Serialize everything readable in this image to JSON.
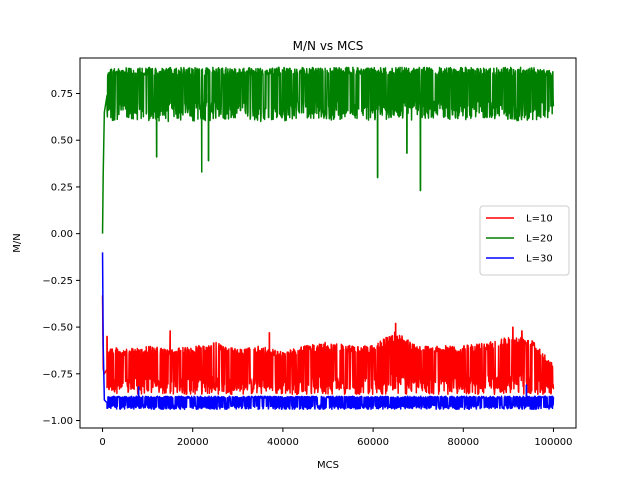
{
  "chart_data": {
    "type": "line",
    "title": "M/N vs MCS",
    "xlabel": "MCS",
    "ylabel": "M/N",
    "xlim": [
      -5000,
      105000
    ],
    "ylim": [
      -1.04,
      0.94
    ],
    "x_ticks": [
      0,
      20000,
      40000,
      60000,
      80000,
      100000
    ],
    "x_tick_labels": [
      "0",
      "20000",
      "40000",
      "60000",
      "80000",
      "100000"
    ],
    "y_ticks": [
      -1.0,
      -0.75,
      -0.5,
      -0.25,
      0.0,
      0.25,
      0.5,
      0.75
    ],
    "y_tick_labels": [
      "−1.00",
      "−0.75",
      "−0.50",
      "−0.25",
      "0.00",
      "0.25",
      "0.50",
      "0.75"
    ],
    "grid": false,
    "legend_position": "center-right",
    "series": [
      {
        "name": "L=10",
        "color": "#ff0000",
        "x": [
          0,
          150,
          400,
          1000,
          5000,
          10000,
          15000,
          20000,
          25000,
          30000,
          35000,
          40000,
          45000,
          50000,
          55000,
          60000,
          65000,
          70000,
          75000,
          80000,
          85000,
          90000,
          95000,
          100000
        ],
        "y_band_low": [
          -0.33,
          -0.85,
          -0.85,
          -0.85,
          -0.86,
          -0.86,
          -0.86,
          -0.86,
          -0.86,
          -0.86,
          -0.86,
          -0.86,
          -0.86,
          -0.86,
          -0.86,
          -0.86,
          -0.86,
          -0.86,
          -0.86,
          -0.86,
          -0.86,
          -0.86,
          -0.86,
          -0.86
        ],
        "y_band_high": [
          -0.33,
          -0.6,
          -0.65,
          -0.6,
          -0.62,
          -0.6,
          -0.62,
          -0.6,
          -0.58,
          -0.62,
          -0.6,
          -0.63,
          -0.6,
          -0.58,
          -0.6,
          -0.6,
          -0.52,
          -0.6,
          -0.6,
          -0.6,
          -0.58,
          -0.55,
          -0.55,
          -0.7
        ],
        "spikes": [
          [
            1000,
            -0.55
          ],
          [
            15000,
            -0.52
          ],
          [
            37000,
            -0.53
          ],
          [
            65000,
            -0.48
          ],
          [
            91000,
            -0.5
          ],
          [
            93000,
            -0.52
          ]
        ]
      },
      {
        "name": "L=20",
        "color": "#008000",
        "x": [
          0,
          150,
          400,
          1000,
          5000,
          10000,
          15000,
          20000,
          25000,
          30000,
          35000,
          40000,
          45000,
          50000,
          55000,
          60000,
          65000,
          70000,
          75000,
          80000,
          85000,
          90000,
          95000,
          100000
        ],
        "y_band_low": [
          0.0,
          0.15,
          0.45,
          0.6,
          0.62,
          0.6,
          0.6,
          0.6,
          0.6,
          0.62,
          0.6,
          0.6,
          0.62,
          0.6,
          0.62,
          0.6,
          0.62,
          0.6,
          0.62,
          0.6,
          0.62,
          0.6,
          0.6,
          0.62
        ],
        "y_band_high": [
          0.0,
          0.5,
          0.85,
          0.88,
          0.89,
          0.89,
          0.89,
          0.89,
          0.89,
          0.89,
          0.89,
          0.89,
          0.89,
          0.89,
          0.89,
          0.89,
          0.89,
          0.89,
          0.89,
          0.89,
          0.89,
          0.89,
          0.89,
          0.87
        ],
        "spikes": [
          [
            12000,
            0.41
          ],
          [
            22000,
            0.33
          ],
          [
            23500,
            0.39
          ],
          [
            61000,
            0.3
          ],
          [
            67500,
            0.43
          ],
          [
            70500,
            0.23
          ]
        ]
      },
      {
        "name": "L=30",
        "color": "#0000ff",
        "x": [
          0,
          150,
          400,
          1000,
          5000,
          10000,
          15000,
          20000,
          25000,
          30000,
          35000,
          40000,
          45000,
          50000,
          55000,
          60000,
          65000,
          70000,
          75000,
          80000,
          85000,
          90000,
          95000,
          100000
        ],
        "y_band_low": [
          -0.1,
          -0.6,
          -0.93,
          -0.94,
          -0.94,
          -0.94,
          -0.94,
          -0.94,
          -0.94,
          -0.94,
          -0.94,
          -0.94,
          -0.94,
          -0.94,
          -0.94,
          -0.94,
          -0.94,
          -0.94,
          -0.94,
          -0.94,
          -0.94,
          -0.94,
          -0.94,
          -0.94
        ],
        "y_band_high": [
          -0.1,
          -0.6,
          -0.85,
          -0.87,
          -0.87,
          -0.87,
          -0.87,
          -0.87,
          -0.87,
          -0.87,
          -0.87,
          -0.87,
          -0.87,
          -0.87,
          -0.87,
          -0.87,
          -0.87,
          -0.87,
          -0.87,
          -0.87,
          -0.87,
          -0.87,
          -0.87,
          -0.87
        ],
        "spikes": [
          [
            8000,
            -0.82
          ],
          [
            94000,
            -0.81
          ]
        ]
      }
    ]
  }
}
